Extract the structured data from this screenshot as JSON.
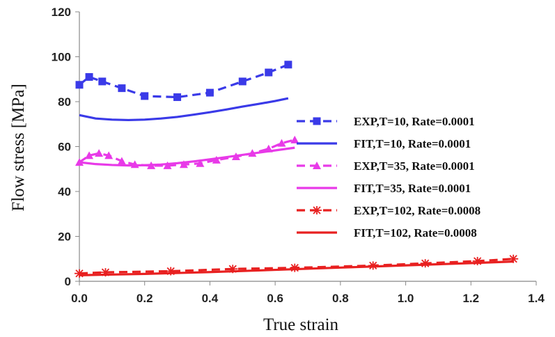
{
  "chart_data": {
    "type": "line",
    "xlabel": "True strain",
    "ylabel": "Flow stress [MPa]",
    "xlim": [
      0,
      1.4
    ],
    "ylim": [
      0,
      120
    ],
    "xticks": [
      "0.0",
      "0.2",
      "0.4",
      "0.6",
      "0.8",
      "1.0",
      "1.2",
      "1.4"
    ],
    "yticks": [
      "0",
      "20",
      "40",
      "60",
      "80",
      "100",
      "120"
    ],
    "grid": false,
    "legend_position": "right",
    "series": [
      {
        "name": "EXP,T=10, Rate=0.0001",
        "color": "#3a3ae8",
        "line": "dashed",
        "marker": "square",
        "x": [
          0.0,
          0.03,
          0.07,
          0.13,
          0.2,
          0.3,
          0.4,
          0.5,
          0.58,
          0.64
        ],
        "y": [
          87.5,
          91,
          89,
          86,
          82.5,
          82,
          84,
          89,
          93,
          96.5
        ]
      },
      {
        "name": "FIT,T=10, Rate=0.0001",
        "color": "#3a3ae8",
        "line": "solid",
        "marker": "none",
        "x": [
          0.0,
          0.05,
          0.1,
          0.15,
          0.2,
          0.25,
          0.3,
          0.35,
          0.4,
          0.45,
          0.5,
          0.55,
          0.6,
          0.64
        ],
        "y": [
          74,
          72.5,
          72,
          71.8,
          72,
          72.5,
          73.2,
          74.2,
          75.3,
          76.5,
          77.8,
          79,
          80.3,
          81.5
        ]
      },
      {
        "name": "EXP,T=35, Rate=0.0001",
        "color": "#e83ae8",
        "line": "dashed",
        "marker": "triangle",
        "x": [
          0.0,
          0.03,
          0.06,
          0.09,
          0.13,
          0.17,
          0.22,
          0.27,
          0.32,
          0.37,
          0.42,
          0.48,
          0.53,
          0.58,
          0.62,
          0.66
        ],
        "y": [
          53,
          56,
          57,
          56,
          53.5,
          52,
          51.5,
          51.5,
          52,
          52.5,
          54,
          55.5,
          57,
          59,
          61.5,
          63
        ]
      },
      {
        "name": "FIT,T=35, Rate=0.0001",
        "color": "#e83ae8",
        "line": "solid",
        "marker": "none",
        "x": [
          0.0,
          0.05,
          0.1,
          0.15,
          0.2,
          0.25,
          0.3,
          0.35,
          0.4,
          0.45,
          0.5,
          0.55,
          0.6,
          0.66
        ],
        "y": [
          53,
          52.2,
          51.8,
          51.6,
          51.7,
          52,
          52.6,
          53.4,
          54.3,
          55.3,
          56.3,
          57.3,
          58.3,
          59.5
        ]
      },
      {
        "name": "EXP,T=102, Rate=0.0008",
        "color": "#e82020",
        "line": "dashed",
        "marker": "asterisk",
        "x": [
          0.0,
          0.08,
          0.28,
          0.47,
          0.66,
          0.9,
          1.06,
          1.22,
          1.33
        ],
        "y": [
          3.5,
          4,
          4.5,
          5.5,
          6,
          7,
          8,
          9,
          10
        ]
      },
      {
        "name": "FIT,T=102, Rate=0.0008",
        "color": "#e82020",
        "line": "solid",
        "marker": "none",
        "x": [
          0.0,
          0.1,
          0.2,
          0.3,
          0.4,
          0.5,
          0.6,
          0.7,
          0.8,
          0.9,
          1.0,
          1.1,
          1.2,
          1.33
        ],
        "y": [
          2.7,
          3.0,
          3.3,
          3.7,
          4.1,
          4.6,
          5.1,
          5.6,
          6.1,
          6.6,
          7.1,
          7.6,
          8.1,
          8.8
        ]
      }
    ]
  }
}
